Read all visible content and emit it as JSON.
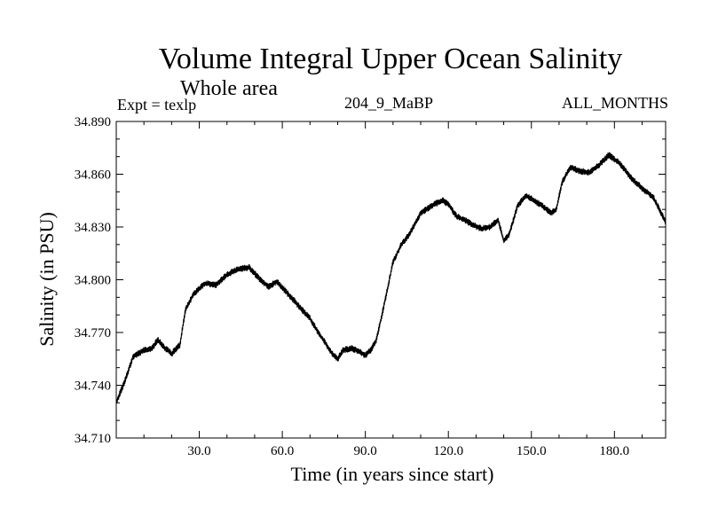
{
  "chart_data": {
    "type": "line",
    "title": "Volume Integral Upper Ocean Salinity",
    "subtitle": "Whole area",
    "annotations": {
      "experiment": "Expt = texlp",
      "run_id": "204_9_MaBP",
      "months": "ALL_MONTHS"
    },
    "xlabel": "Time (in years since start)",
    "ylabel": "Salinity (in PSU)",
    "xlim": [
      0,
      198.5
    ],
    "ylim": [
      34.71,
      34.89
    ],
    "x_ticks": [
      30,
      60,
      90,
      120,
      150,
      180
    ],
    "x_tick_labels": [
      "30.0",
      "60.0",
      "90.0",
      "120.0",
      "150.0",
      "180.0"
    ],
    "y_ticks": [
      34.71,
      34.74,
      34.77,
      34.8,
      34.83,
      34.86,
      34.89
    ],
    "y_tick_labels": [
      "34.710",
      "34.740",
      "34.770",
      "34.800",
      "34.830",
      "34.860",
      "34.890"
    ],
    "grid": false,
    "noise_amplitude": 0.0017,
    "series": [
      {
        "name": "salinity",
        "x": [
          0,
          3,
          6,
          10,
          13,
          15,
          17,
          20,
          23,
          25,
          28,
          32,
          36,
          40,
          44,
          48,
          52,
          55,
          58,
          62,
          66,
          70,
          73,
          76,
          78,
          80,
          82,
          85,
          88,
          90,
          92,
          94,
          96,
          98,
          100,
          103,
          106,
          110,
          115,
          118,
          120,
          123,
          126,
          129,
          132,
          135,
          138,
          140,
          142,
          145,
          148,
          151,
          154,
          157,
          159,
          161,
          164,
          167,
          171,
          175,
          178,
          182,
          186,
          190,
          194,
          198.5
        ],
        "y": [
          34.73,
          34.742,
          34.756,
          34.76,
          34.761,
          34.766,
          34.762,
          34.758,
          34.763,
          34.783,
          34.792,
          34.798,
          34.797,
          34.803,
          34.806,
          34.807,
          34.8,
          34.796,
          34.799,
          34.792,
          34.785,
          34.778,
          34.77,
          34.763,
          34.758,
          34.755,
          34.76,
          34.761,
          34.759,
          34.757,
          34.76,
          34.766,
          34.78,
          34.795,
          34.81,
          34.82,
          34.826,
          34.838,
          34.843,
          34.845,
          34.843,
          34.836,
          34.834,
          34.831,
          34.829,
          34.83,
          34.834,
          34.822,
          34.826,
          34.842,
          34.848,
          34.845,
          34.842,
          34.838,
          34.84,
          34.855,
          34.864,
          34.862,
          34.861,
          34.866,
          34.871,
          34.866,
          34.858,
          34.852,
          34.847,
          34.833
        ]
      }
    ]
  }
}
